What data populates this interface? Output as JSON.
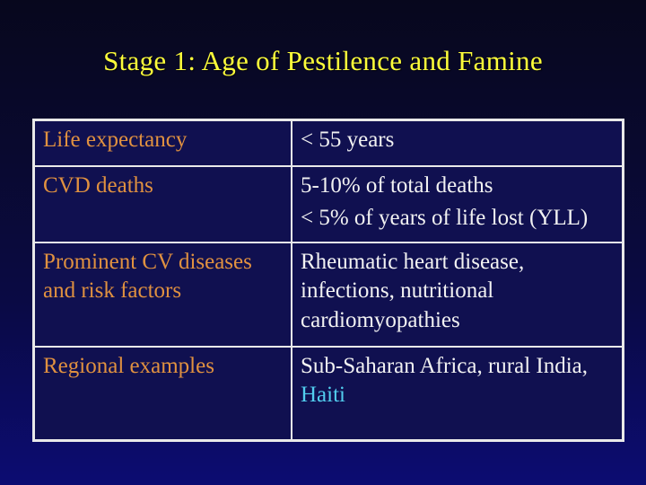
{
  "slide": {
    "title": "Stage 1: Age of Pestilence and Famine",
    "colors": {
      "background_top": "#07071d",
      "background_bottom": "#0c0c72",
      "title_text": "#fcfc3a",
      "label_text": "#e09140",
      "value_text": "#f2f2f2",
      "highlight_text": "#52cdee",
      "table_fill": "#101050",
      "table_border": "#e9e9e9"
    },
    "table": {
      "rows": [
        {
          "label": "Life expectancy",
          "values": [
            "< 55 years"
          ]
        },
        {
          "label": "CVD deaths",
          "values": [
            "5-10% of total deaths",
            "< 5% of years of life lost (YLL)"
          ]
        },
        {
          "label": "Prominent CV diseases and risk factors",
          "values": [
            "Rheumatic heart disease, infections, nutritional cardiomyopathies"
          ]
        },
        {
          "label": "Regional examples",
          "values": [
            "Sub-Saharan Africa, rural India,"
          ],
          "highlight": "Haiti"
        }
      ]
    }
  }
}
